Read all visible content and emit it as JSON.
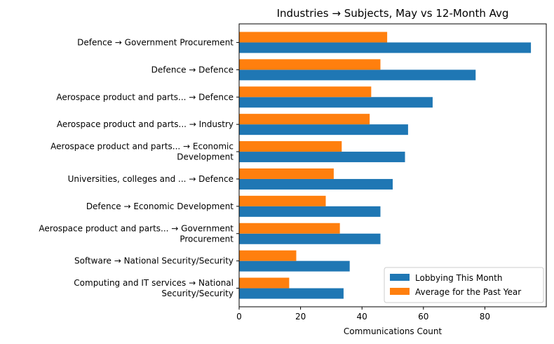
{
  "chart_data": {
    "type": "bar",
    "orientation": "horizontal",
    "title": "Industries → Subjects, May vs 12-Month Avg",
    "xlabel": "Communications Count",
    "ylabel": "",
    "xlim": [
      0,
      100
    ],
    "xticks": [
      0,
      20,
      40,
      60,
      80
    ],
    "grid": false,
    "legend_position": "bottom-right",
    "categories": [
      [
        "Defence → Government Procurement"
      ],
      [
        "Defence → Defence"
      ],
      [
        "Aerospace product and parts... → Defence"
      ],
      [
        "Aerospace product and parts... → Industry"
      ],
      [
        "Aerospace product and parts... → Economic",
        "Development"
      ],
      [
        "Universities, colleges and ... → Defence"
      ],
      [
        "Defence → Economic Development"
      ],
      [
        "Aerospace product and parts... → Government",
        "Procurement"
      ],
      [
        "Software → National Security/Security"
      ],
      [
        "Computing and IT services → National",
        "Security/Security"
      ]
    ],
    "series": [
      {
        "name": "Lobbying This Month",
        "color": "#1f77b4",
        "values": [
          95,
          77,
          63,
          55,
          54,
          50,
          46,
          46,
          36,
          34
        ]
      },
      {
        "name": "Average for the Past Year",
        "color": "#ff7f0e",
        "values": [
          48.2,
          46.0,
          43.0,
          42.5,
          33.4,
          30.8,
          28.2,
          32.8,
          18.6,
          16.3
        ]
      }
    ]
  }
}
